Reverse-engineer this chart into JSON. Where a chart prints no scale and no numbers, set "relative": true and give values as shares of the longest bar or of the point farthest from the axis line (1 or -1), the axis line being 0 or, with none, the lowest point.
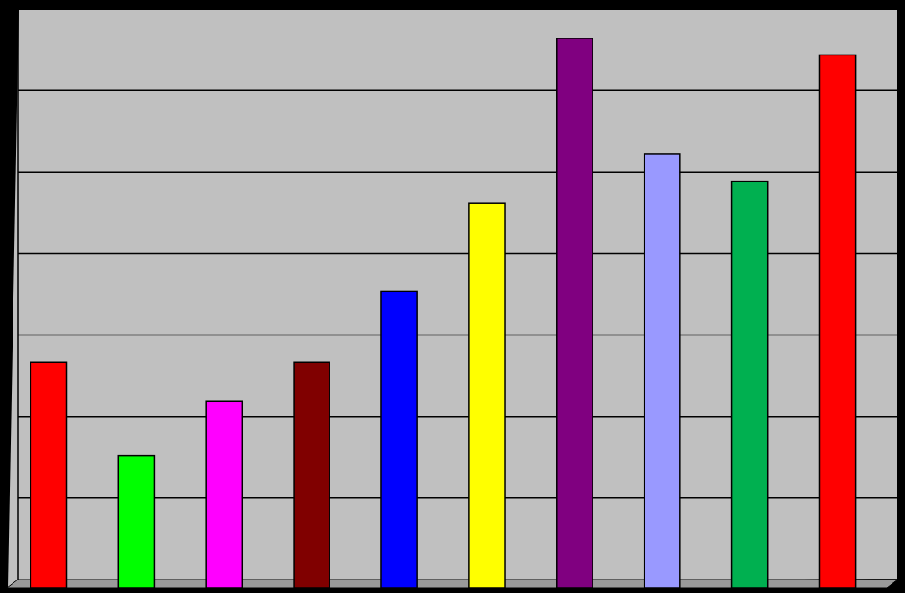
{
  "chart_data": {
    "type": "bar",
    "relative": true,
    "categories": [
      null,
      null,
      null,
      null,
      null,
      null,
      null,
      null,
      null,
      null
    ],
    "values": [
      0.41,
      0.24,
      0.34,
      0.41,
      0.54,
      0.7,
      1,
      0.79,
      0.74,
      0.97
    ],
    "colors": [
      "#ff0000",
      "#00ff00",
      "#ff00ff",
      "#800000",
      "#0000ff",
      "#ffff00",
      "#800080",
      "#9999ff",
      "#00b050",
      "#ff0000"
    ],
    "grid": true
  }
}
